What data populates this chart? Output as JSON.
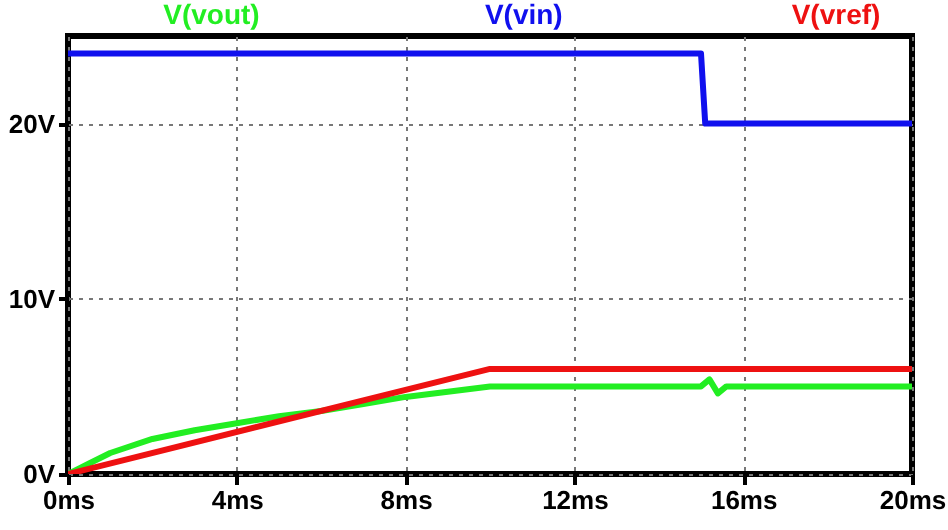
{
  "chart_data": {
    "type": "line",
    "xlim": [
      0,
      20
    ],
    "ylim": [
      0,
      25
    ],
    "xticks": [
      {
        "value": 0,
        "label": "0ms"
      },
      {
        "value": 4,
        "label": "4ms"
      },
      {
        "value": 8,
        "label": "8ms"
      },
      {
        "value": 12,
        "label": "12ms"
      },
      {
        "value": 16,
        "label": "16ms"
      },
      {
        "value": 20,
        "label": "20ms"
      }
    ],
    "yticks": [
      {
        "value": 0,
        "label": "0V"
      },
      {
        "value": 10,
        "label": "10V"
      },
      {
        "value": 20,
        "label": "20V"
      }
    ],
    "grid": true,
    "legend": "top",
    "line_style": "solid",
    "marker": "none",
    "series": [
      {
        "name": "V(vout)",
        "color": "#22ee22",
        "x": [
          0,
          0.5,
          1,
          2,
          3,
          4,
          5,
          6,
          7,
          8,
          9,
          10,
          11,
          14,
          15,
          15.2,
          15.4,
          15.6,
          16,
          20
        ],
        "values": [
          0,
          0.6,
          1.2,
          2.0,
          2.5,
          2.9,
          3.3,
          3.6,
          4.0,
          4.4,
          4.7,
          5.0,
          5.0,
          5.0,
          5.0,
          5.4,
          4.6,
          5.0,
          5.0,
          5.0
        ]
      },
      {
        "name": "V(vin)",
        "color": "#1010ee",
        "x": [
          0,
          15,
          15.1,
          20
        ],
        "values": [
          24,
          24,
          20,
          20
        ]
      },
      {
        "name": "V(vref)",
        "color": "#ee1111",
        "x": [
          0,
          10,
          20
        ],
        "values": [
          0,
          6,
          6
        ]
      }
    ]
  }
}
